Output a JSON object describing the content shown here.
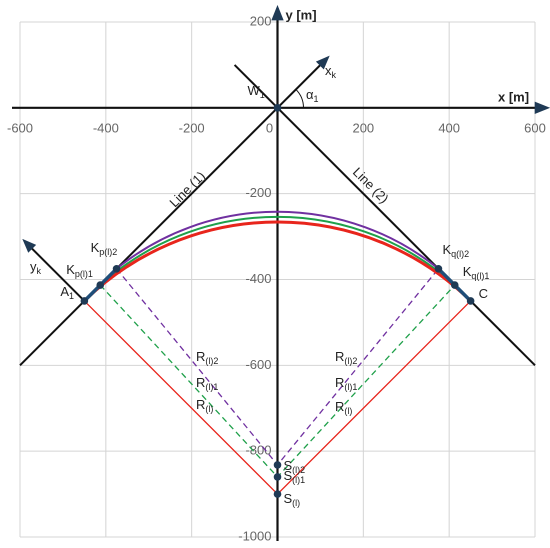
{
  "chart_data": {
    "type": "geometry",
    "xlabel": "x [m]",
    "ylabel": "y [m]",
    "xlim": [
      -600,
      600
    ],
    "ylim": [
      -1000,
      200
    ],
    "xticks": [
      -600,
      -400,
      -200,
      0,
      200,
      400,
      600
    ],
    "yticks": [
      200,
      -200,
      -400,
      -600,
      -800,
      -1000
    ],
    "grid": true,
    "axis_labels": [
      {
        "text": "x",
        "sub": "k"
      },
      {
        "text": "y",
        "sub": "k"
      },
      {
        "text": "α",
        "sub": "1"
      }
    ],
    "lines": [
      {
        "name": "Line (1)",
        "x": [
          -600,
          117
        ],
        "y": [
          -600,
          117
        ]
      },
      {
        "name": "Line (2)",
        "x": [
          -100,
          600
        ],
        "y": [
          100,
          -600
        ]
      }
    ],
    "arcs": [
      {
        "color": "#7030a0",
        "x": [
          -375,
          0,
          375
        ],
        "y": [
          -375,
          -242,
          -375
        ]
      },
      {
        "color": "#1fa04a",
        "x": [
          -413,
          0,
          413
        ],
        "y": [
          -413,
          -254,
          -413
        ]
      },
      {
        "color": "#e8251c",
        "x": [
          -450,
          0,
          450
        ],
        "y": [
          -450,
          -266,
          -450
        ]
      }
    ],
    "segments": [
      {
        "color": "#e8251c",
        "dashed": false,
        "x": [
          -450,
          0,
          450
        ],
        "y": [
          -450,
          -900,
          -450
        ]
      },
      {
        "color": "#1fa04a",
        "dashed": true,
        "x": [
          -413,
          0,
          413
        ],
        "y": [
          -413,
          -860,
          -413
        ]
      },
      {
        "color": "#7030a0",
        "dashed": true,
        "x": [
          -375,
          0,
          375
        ],
        "y": [
          -375,
          -832,
          -375
        ]
      }
    ],
    "points": [
      {
        "text": "W",
        "sub": "1",
        "x": 0,
        "y": 0
      },
      {
        "text": "A",
        "sub": "1",
        "x": -450,
        "y": -450
      },
      {
        "text": "C",
        "sub": "",
        "x": 450,
        "y": -450
      },
      {
        "text": "K",
        "sub": "p(l)1",
        "x": -413,
        "y": -413
      },
      {
        "text": "K",
        "sub": "p(l)2",
        "x": -375,
        "y": -375
      },
      {
        "text": "K",
        "sub": "q(l)2",
        "x": 375,
        "y": -375
      },
      {
        "text": "K",
        "sub": "q(l)1",
        "x": 413,
        "y": -413
      },
      {
        "text": "S",
        "sub": "(l)2",
        "x": 0,
        "y": -832
      },
      {
        "text": "S",
        "sub": "(l)1",
        "x": 0,
        "y": -860
      },
      {
        "text": "S",
        "sub": "(l)",
        "x": 0,
        "y": -900
      }
    ],
    "annotations": [
      {
        "text": "R",
        "sub": "(l)2"
      },
      {
        "text": "R",
        "sub": "(l)1"
      },
      {
        "text": "R",
        "sub": "(l)"
      },
      {
        "text": "R",
        "sub": "(l)2"
      },
      {
        "text": "R",
        "sub": "(l)1"
      },
      {
        "text": "R",
        "sub": "(l)"
      }
    ]
  }
}
